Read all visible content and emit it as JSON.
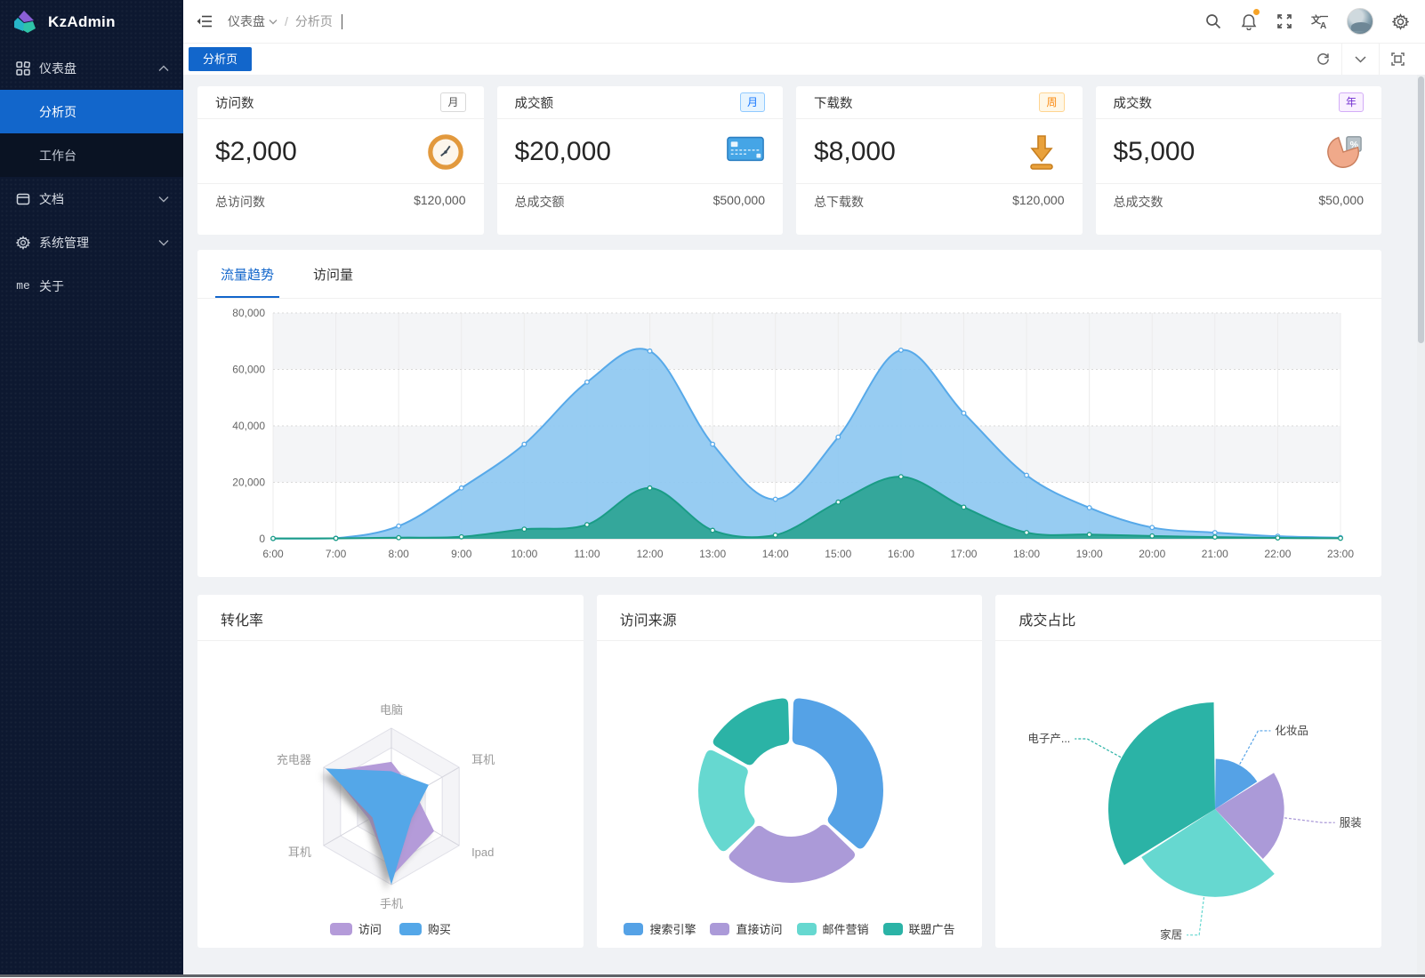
{
  "app": {
    "accent": "#1266cb",
    "page_bg": "#f0f2f5",
    "sidebar_bg": "#0d1830"
  },
  "sidebar": {
    "logo_text": "KzAdmin",
    "menu": [
      {
        "id": "dashboard",
        "label": "仪表盘",
        "icon": "dashboard-icon",
        "chevron": "up"
      },
      {
        "id": "analysis",
        "label": "分析页",
        "submenu": true,
        "active": true
      },
      {
        "id": "workbench",
        "label": "工作台",
        "submenu": true
      },
      {
        "id": "docs",
        "label": "文档",
        "icon": "doc-icon",
        "chevron": "down"
      },
      {
        "id": "system",
        "label": "系统管理",
        "icon": "gear-icon",
        "chevron": "down"
      },
      {
        "id": "about",
        "label": "关于",
        "icon": "me-icon",
        "icon_text": "me"
      }
    ]
  },
  "header": {
    "breadcrumb": {
      "items": [
        "仪表盘",
        "分析页"
      ],
      "separator": "/"
    },
    "notification_dot_color": "#f7a326"
  },
  "tabbar": {
    "active_tab": "分析页"
  },
  "stat_cards": [
    {
      "title": "访问数",
      "badge": "月",
      "badge_style": "default",
      "value": "$2,000",
      "icon": "clock-icon",
      "footer_label": "总访问数",
      "footer_value": "$120,000"
    },
    {
      "title": "成交额",
      "badge": "月",
      "badge_style": "blue",
      "value": "$20,000",
      "icon": "credit-card-icon",
      "footer_label": "总成交额",
      "footer_value": "$500,000"
    },
    {
      "title": "下载数",
      "badge": "周",
      "badge_style": "orange",
      "value": "$8,000",
      "icon": "download-icon",
      "footer_label": "总下载数",
      "footer_value": "$120,000"
    },
    {
      "title": "成交数",
      "badge": "年",
      "badge_style": "purple",
      "value": "$5,000",
      "icon": "pie-icon",
      "footer_label": "总成交数",
      "footer_value": "$50,000"
    }
  ],
  "trend_card": {
    "tabs": [
      {
        "label": "流量趋势",
        "active": true
      },
      {
        "label": "访问量",
        "active": false
      }
    ]
  },
  "bottom_cards": [
    {
      "title": "转化率"
    },
    {
      "title": "访问来源"
    },
    {
      "title": "成交占比"
    }
  ],
  "chart_data": [
    {
      "id": "traffic-trend",
      "type": "area",
      "x": [
        "6:00",
        "7:00",
        "8:00",
        "9:00",
        "10:00",
        "11:00",
        "12:00",
        "13:00",
        "14:00",
        "15:00",
        "16:00",
        "17:00",
        "18:00",
        "19:00",
        "20:00",
        "21:00",
        "22:00",
        "23:00"
      ],
      "ylim": [
        0,
        80000
      ],
      "ytick_labels": [
        "0",
        "20,000",
        "40,000",
        "60,000",
        "80,000"
      ],
      "grid": true,
      "series": [
        {
          "name": "series-blue",
          "line_color": "#57a9e9",
          "fill_color": "#8fc8f1",
          "values": [
            100,
            200,
            4500,
            18000,
            33500,
            55500,
            66500,
            33500,
            14000,
            36000,
            66800,
            44500,
            22500,
            11000,
            4000,
            2200,
            900,
            400
          ]
        },
        {
          "name": "series-green",
          "line_color": "#1a9c86",
          "fill_color": "#2ca494",
          "values": [
            100,
            150,
            400,
            700,
            3400,
            5000,
            18000,
            3000,
            1300,
            13000,
            22000,
            11200,
            2200,
            1500,
            1000,
            600,
            300,
            200
          ]
        }
      ]
    },
    {
      "id": "conversion-radar",
      "type": "radar",
      "max": 100,
      "indicators": [
        "电脑",
        "耳机",
        "Ipad",
        "手机",
        "耳机",
        "充电器"
      ],
      "series": [
        {
          "name": "访问",
          "color": "#b49bd9",
          "values": [
            57,
            35,
            63,
            90,
            33,
            90
          ]
        },
        {
          "name": "购买",
          "color": "#54a7e8",
          "values": [
            45,
            55,
            30,
            100,
            28,
            97
          ]
        }
      ],
      "legend_position": "bottom"
    },
    {
      "id": "visit-source-donut",
      "type": "donut",
      "slices": [
        {
          "name": "搜索引擎",
          "value": 1048,
          "color": "#55a2e6"
        },
        {
          "name": "直接访问",
          "value": 735,
          "color": "#ab9ad8"
        },
        {
          "name": "邮件营销",
          "value": 580,
          "color": "#66d8d0"
        },
        {
          "name": "联盟广告",
          "value": 484,
          "color": "#2bb3a6"
        }
      ],
      "legend_position": "bottom"
    },
    {
      "id": "deal-share-rose",
      "type": "pie",
      "rose": true,
      "slices": [
        {
          "name": "化妆品",
          "label": "化妆品",
          "value": 16,
          "color": "#55a2e6"
        },
        {
          "name": "服装",
          "label": "服装",
          "value": 22,
          "color": "#ab9ad8"
        },
        {
          "name": "家居",
          "label": "家居",
          "value": 28,
          "color": "#66d8d0"
        },
        {
          "name": "电子产品",
          "label": "电子产...",
          "value": 34,
          "color": "#2bb3a6"
        }
      ],
      "legend_position": "none"
    }
  ]
}
